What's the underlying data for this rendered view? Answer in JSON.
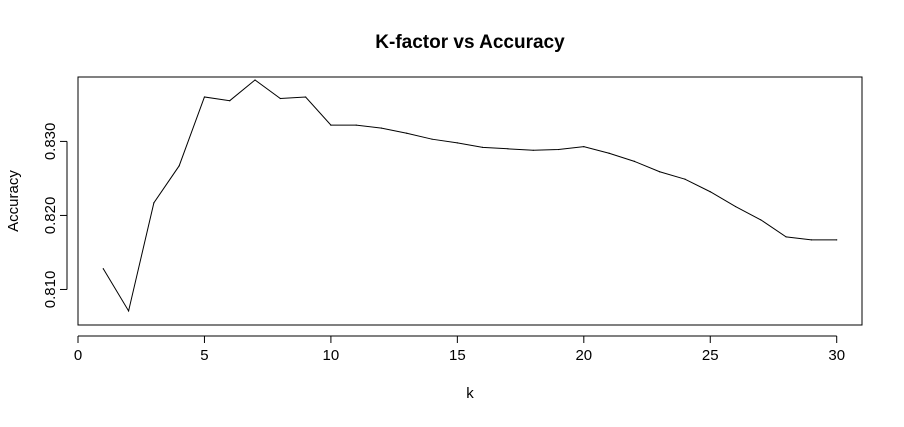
{
  "chart_data": {
    "type": "line",
    "title": "K-factor vs Accuracy",
    "xlabel": "k",
    "ylabel": "Accuracy",
    "xlim": [
      0,
      31
    ],
    "ylim": [
      0.8052,
      0.8387
    ],
    "x_ticks": [
      0,
      5,
      10,
      15,
      20,
      25,
      30
    ],
    "x_tick_labels": [
      "0",
      "5",
      "10",
      "15",
      "20",
      "25",
      "30"
    ],
    "y_ticks": [
      0.81,
      0.82,
      0.83
    ],
    "y_tick_labels": [
      "0.810",
      "0.820",
      "0.830"
    ],
    "grid": false,
    "legend": "none",
    "series": [
      {
        "color": "#000000",
        "x": [
          1,
          2,
          3,
          4,
          5,
          6,
          7,
          8,
          9,
          10,
          11,
          12,
          13,
          14,
          15,
          16,
          17,
          18,
          19,
          20,
          21,
          22,
          23,
          24,
          25,
          26,
          27,
          28,
          29,
          30
        ],
        "y": [
          0.8128,
          0.8071,
          0.8217,
          0.8267,
          0.836,
          0.8355,
          0.8383,
          0.8358,
          0.836,
          0.8322,
          0.8322,
          0.8318,
          0.8311,
          0.8303,
          0.8298,
          0.8292,
          0.829,
          0.8288,
          0.8289,
          0.8293,
          0.8284,
          0.8273,
          0.8259,
          0.8249,
          0.8232,
          0.8212,
          0.8194,
          0.8171,
          0.8167,
          0.8167
        ]
      }
    ]
  }
}
